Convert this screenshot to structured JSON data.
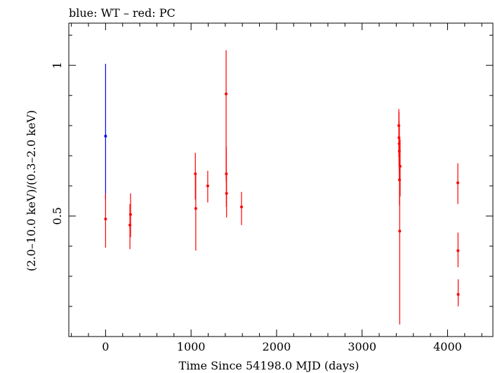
{
  "chart_data": {
    "type": "scatter",
    "title": "blue: WT – red: PC",
    "xlabel": "Time Since 54198.0 MJD (days)",
    "ylabel": "(2.0–10.0 keV)/(0.3–2.0 keV)",
    "xlim": [
      -430,
      4530
    ],
    "ylim": [
      0.1,
      1.14
    ],
    "xticks": [
      0,
      1000,
      2000,
      3000,
      4000
    ],
    "xtick_labels": [
      "0",
      "1000",
      "2000",
      "3000",
      "4000"
    ],
    "yticks": [
      0.5,
      1
    ],
    "ytick_labels": [
      "0.5",
      "1"
    ],
    "grid": false,
    "series": [
      {
        "color": "#0000ff",
        "points": [
          {
            "x": 0,
            "y": 0.765,
            "ylo": 0.555,
            "yhi": 1.005
          }
        ]
      },
      {
        "color": "#ff0000",
        "points": [
          {
            "x": 0,
            "y": 0.49,
            "ylo": 0.395,
            "yhi": 0.575
          },
          {
            "x": 285,
            "y": 0.47,
            "ylo": 0.39,
            "yhi": 0.54
          },
          {
            "x": 292,
            "y": 0.505,
            "ylo": 0.43,
            "yhi": 0.575
          },
          {
            "x": 1050,
            "y": 0.64,
            "ylo": 0.555,
            "yhi": 0.71
          },
          {
            "x": 1055,
            "y": 0.525,
            "ylo": 0.385,
            "yhi": 0.64
          },
          {
            "x": 1195,
            "y": 0.6,
            "ylo": 0.545,
            "yhi": 0.65
          },
          {
            "x": 1410,
            "y": 0.905,
            "ylo": 0.615,
            "yhi": 1.05
          },
          {
            "x": 1412,
            "y": 0.64,
            "ylo": 0.53,
            "yhi": 0.73
          },
          {
            "x": 1415,
            "y": 0.575,
            "ylo": 0.495,
            "yhi": 0.64
          },
          {
            "x": 1590,
            "y": 0.53,
            "ylo": 0.47,
            "yhi": 0.58
          },
          {
            "x": 3430,
            "y": 0.8,
            "ylo": 0.695,
            "yhi": 0.855
          },
          {
            "x": 3432,
            "y": 0.76,
            "ylo": 0.665,
            "yhi": 0.845
          },
          {
            "x": 3434,
            "y": 0.74,
            "ylo": 0.645,
            "yhi": 0.815
          },
          {
            "x": 3436,
            "y": 0.715,
            "ylo": 0.62,
            "yhi": 0.795
          },
          {
            "x": 3438,
            "y": 0.62,
            "ylo": 0.535,
            "yhi": 0.695
          },
          {
            "x": 3440,
            "y": 0.45,
            "ylo": 0.14,
            "yhi": 0.635
          },
          {
            "x": 3445,
            "y": 0.665,
            "ylo": 0.565,
            "yhi": 0.755
          },
          {
            "x": 4120,
            "y": 0.61,
            "ylo": 0.54,
            "yhi": 0.675
          },
          {
            "x": 4122,
            "y": 0.385,
            "ylo": 0.33,
            "yhi": 0.445
          },
          {
            "x": 4124,
            "y": 0.24,
            "ylo": 0.2,
            "yhi": 0.29
          }
        ]
      }
    ]
  }
}
